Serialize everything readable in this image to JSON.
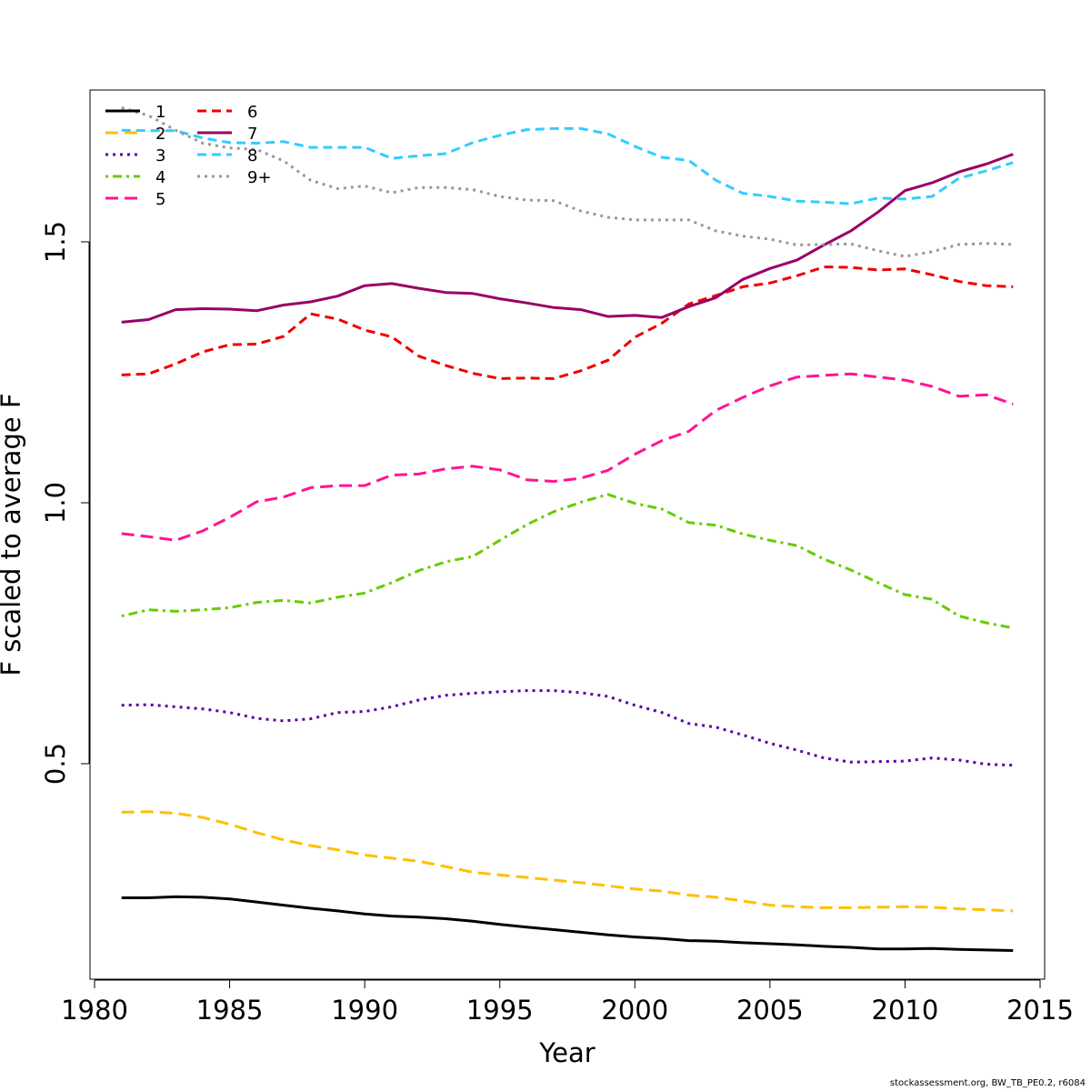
{
  "footer": {
    "note": "stockassessment.org, BW_TB_PE0.2, r6084"
  },
  "chart_data": {
    "type": "line",
    "title": "",
    "xlabel": "Year",
    "ylabel": "F scaled to average F",
    "xlim": [
      1980,
      2015
    ],
    "ylim": [
      0.085,
      1.79
    ],
    "xticks": [
      1980,
      1985,
      1990,
      1995,
      2000,
      2005,
      2010,
      2015
    ],
    "yticks": [
      0.5,
      1.0,
      1.5
    ],
    "ytick_labels": [
      "0.5",
      "1.0",
      "1.5"
    ],
    "legend_position": "top-left",
    "x": [
      1981,
      1982,
      1983,
      1984,
      1985,
      1986,
      1987,
      1988,
      1989,
      1990,
      1991,
      1992,
      1993,
      1994,
      1995,
      1996,
      1997,
      1998,
      1999,
      2000,
      2001,
      2002,
      2003,
      2004,
      2005,
      2006,
      2007,
      2008,
      2009,
      2010,
      2011,
      2012,
      2013,
      2014
    ],
    "series": [
      {
        "name": "1",
        "color": "#000000",
        "dash": "solid",
        "values": [
          0.243,
          0.243,
          0.245,
          0.244,
          0.241,
          0.235,
          0.229,
          0.223,
          0.218,
          0.212,
          0.208,
          0.206,
          0.203,
          0.198,
          0.192,
          0.187,
          0.182,
          0.177,
          0.172,
          0.168,
          0.165,
          0.161,
          0.16,
          0.157,
          0.155,
          0.153,
          0.15,
          0.148,
          0.145,
          0.145,
          0.146,
          0.144,
          0.143,
          0.142
        ]
      },
      {
        "name": "2",
        "color": "#FFC000",
        "dash": "longdash",
        "values": [
          0.407,
          0.408,
          0.405,
          0.397,
          0.384,
          0.368,
          0.354,
          0.343,
          0.335,
          0.325,
          0.319,
          0.313,
          0.303,
          0.292,
          0.287,
          0.282,
          0.277,
          0.272,
          0.266,
          0.26,
          0.256,
          0.248,
          0.244,
          0.237,
          0.229,
          0.226,
          0.224,
          0.224,
          0.225,
          0.226,
          0.225,
          0.222,
          0.22,
          0.218
        ]
      },
      {
        "name": "3",
        "color": "#5B00A6",
        "dash": "dotted",
        "values": [
          0.612,
          0.613,
          0.609,
          0.605,
          0.598,
          0.587,
          0.582,
          0.586,
          0.598,
          0.6,
          0.609,
          0.622,
          0.631,
          0.635,
          0.638,
          0.64,
          0.64,
          0.636,
          0.629,
          0.612,
          0.598,
          0.577,
          0.57,
          0.555,
          0.539,
          0.526,
          0.511,
          0.503,
          0.504,
          0.505,
          0.511,
          0.507,
          0.499,
          0.497
        ]
      },
      {
        "name": "4",
        "color": "#66CC00",
        "dash": "dotdash",
        "values": [
          0.783,
          0.795,
          0.792,
          0.795,
          0.799,
          0.809,
          0.813,
          0.808,
          0.819,
          0.827,
          0.847,
          0.87,
          0.887,
          0.897,
          0.928,
          0.958,
          0.983,
          1.001,
          1.016,
          0.999,
          0.988,
          0.962,
          0.957,
          0.94,
          0.928,
          0.918,
          0.892,
          0.871,
          0.847,
          0.824,
          0.815,
          0.783,
          0.77,
          0.76
        ]
      },
      {
        "name": "5",
        "color": "#FF1493",
        "dash": "longdash",
        "values": [
          0.941,
          0.935,
          0.928,
          0.946,
          0.972,
          1.002,
          1.011,
          1.029,
          1.033,
          1.033,
          1.053,
          1.055,
          1.065,
          1.07,
          1.063,
          1.044,
          1.041,
          1.047,
          1.062,
          1.093,
          1.119,
          1.137,
          1.177,
          1.202,
          1.224,
          1.241,
          1.244,
          1.247,
          1.241,
          1.235,
          1.223,
          1.204,
          1.207,
          1.189
        ]
      },
      {
        "name": "6",
        "color": "#EE0000",
        "dash": "dashed",
        "values": [
          1.245,
          1.247,
          1.266,
          1.289,
          1.303,
          1.304,
          1.319,
          1.362,
          1.352,
          1.331,
          1.318,
          1.281,
          1.263,
          1.248,
          1.238,
          1.239,
          1.238,
          1.253,
          1.273,
          1.317,
          1.344,
          1.381,
          1.397,
          1.414,
          1.421,
          1.435,
          1.452,
          1.451,
          1.446,
          1.448,
          1.437,
          1.424,
          1.416,
          1.414
        ]
      },
      {
        "name": "7",
        "color": "#990066",
        "dash": "solid",
        "values": [
          1.346,
          1.351,
          1.37,
          1.372,
          1.371,
          1.368,
          1.379,
          1.385,
          1.396,
          1.416,
          1.42,
          1.411,
          1.403,
          1.401,
          1.391,
          1.383,
          1.374,
          1.37,
          1.357,
          1.359,
          1.355,
          1.376,
          1.393,
          1.428,
          1.449,
          1.465,
          1.494,
          1.521,
          1.557,
          1.598,
          1.613,
          1.634,
          1.649,
          1.668
        ]
      },
      {
        "name": "8",
        "color": "#33CCFF",
        "dash": "dashed",
        "values": [
          1.714,
          1.713,
          1.713,
          1.699,
          1.69,
          1.689,
          1.692,
          1.681,
          1.681,
          1.681,
          1.66,
          1.665,
          1.669,
          1.69,
          1.704,
          1.715,
          1.717,
          1.717,
          1.707,
          1.683,
          1.662,
          1.656,
          1.618,
          1.593,
          1.587,
          1.578,
          1.576,
          1.573,
          1.584,
          1.582,
          1.587,
          1.622,
          1.636,
          1.652
        ]
      },
      {
        "name": "9+",
        "color": "#999999",
        "dash": "dotted",
        "values": [
          1.757,
          1.742,
          1.714,
          1.689,
          1.68,
          1.677,
          1.655,
          1.618,
          1.602,
          1.607,
          1.594,
          1.604,
          1.604,
          1.6,
          1.587,
          1.58,
          1.579,
          1.559,
          1.547,
          1.542,
          1.542,
          1.542,
          1.521,
          1.511,
          1.505,
          1.494,
          1.495,
          1.496,
          1.483,
          1.472,
          1.481,
          1.495,
          1.497,
          1.495
        ]
      }
    ]
  }
}
